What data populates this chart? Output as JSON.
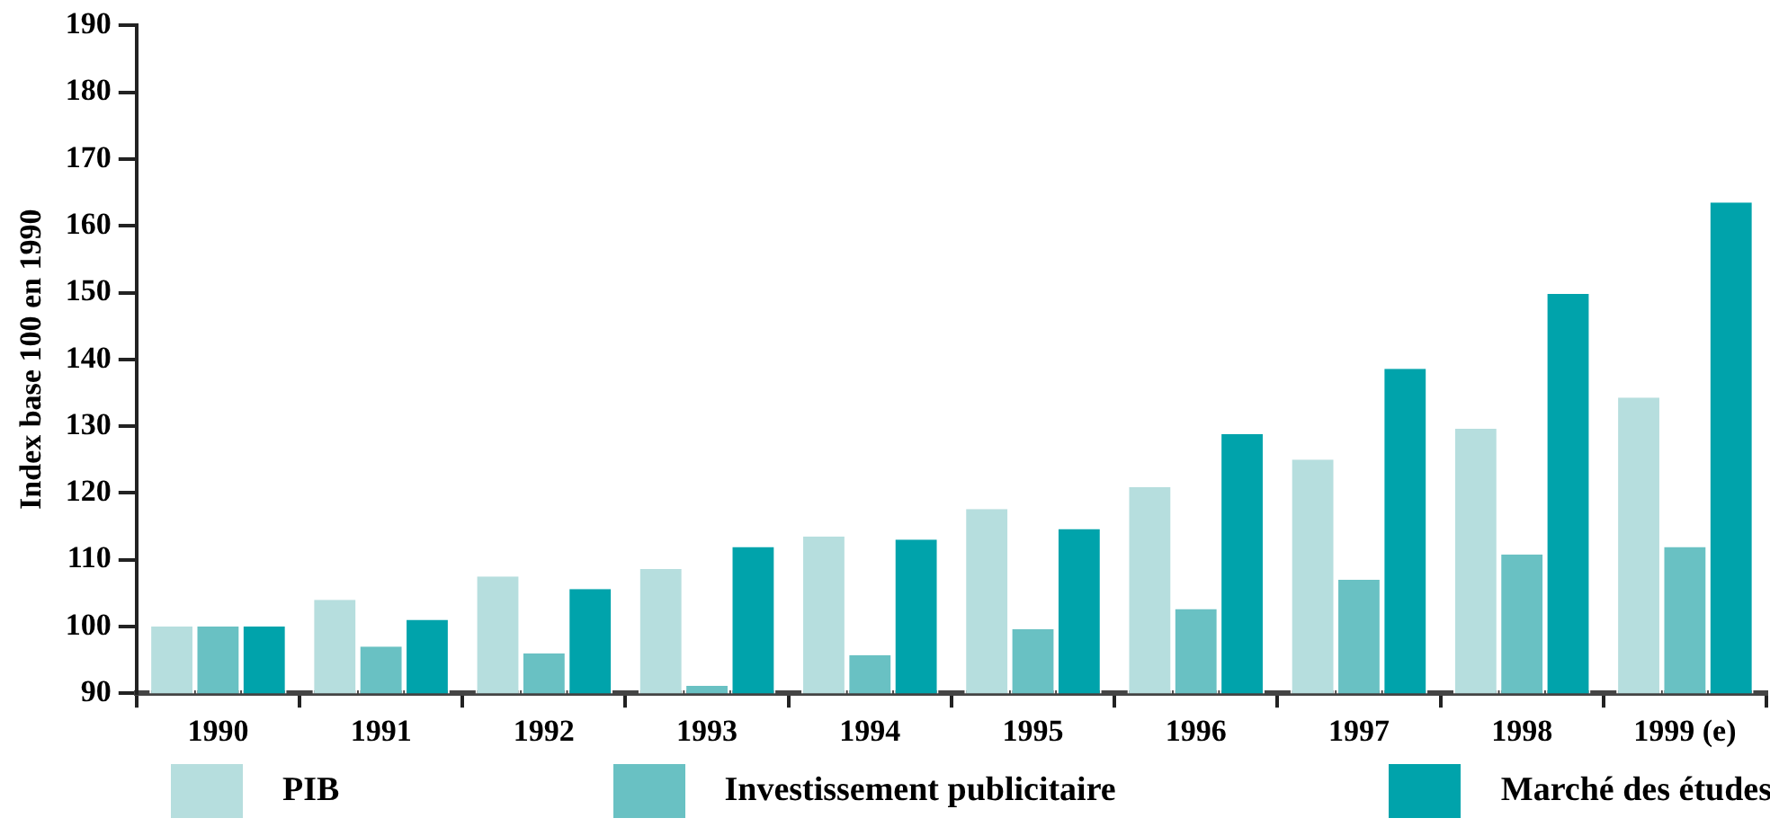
{
  "chart_data": {
    "type": "bar",
    "ylabel": "Index base 100 en 1990",
    "categories": [
      "1990",
      "1991",
      "1992",
      "1993",
      "1994",
      "1995",
      "1996",
      "1997",
      "1998",
      "1999 (e)"
    ],
    "series": [
      {
        "name": "PIB",
        "color": "#b6dede",
        "values": [
          100,
          104,
          107.5,
          108.6,
          113.5,
          117.6,
          120.9,
          125,
          129.6,
          134.3
        ]
      },
      {
        "name": "Investissement publicitaire",
        "color": "#69c1c3",
        "values": [
          100,
          97,
          96,
          91.1,
          95.7,
          99.6,
          102.6,
          107,
          110.8,
          111.9
        ]
      },
      {
        "name": "Marché des études",
        "color": "#00a3ab",
        "values": [
          100,
          101,
          105.6,
          111.9,
          113,
          114.6,
          128.8,
          138.6,
          149.8,
          163.5
        ]
      }
    ],
    "ylim": [
      90,
      190
    ],
    "yticks": [
      90,
      100,
      110,
      120,
      130,
      140,
      150,
      160,
      170,
      180,
      190
    ],
    "grid": false,
    "legend": "bottom"
  }
}
